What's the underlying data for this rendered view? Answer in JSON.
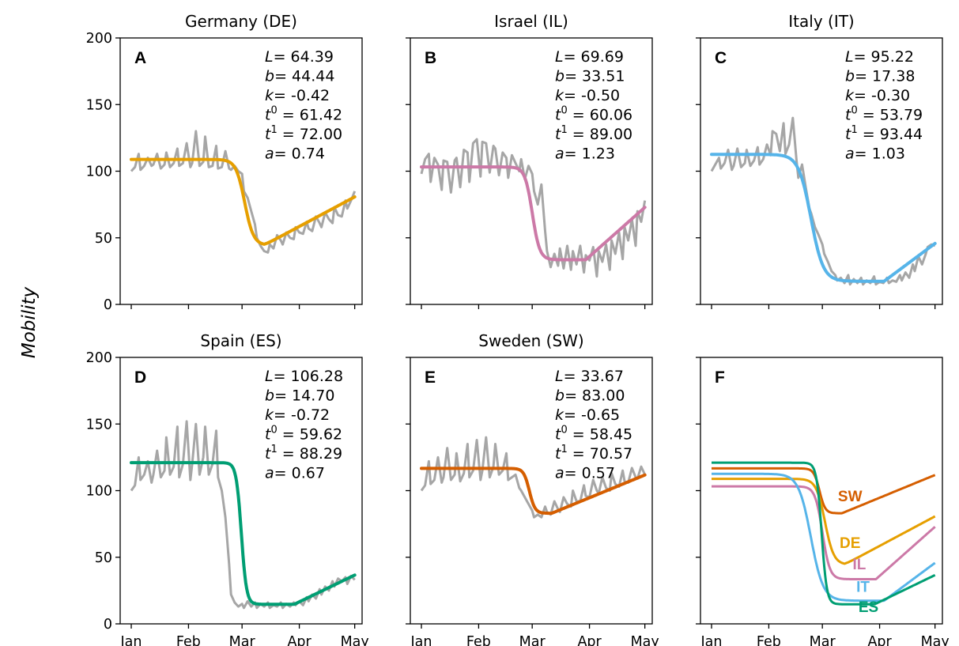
{
  "ylabel": "Mobility",
  "colors": {
    "DE": "#e69f00",
    "IL": "#cc79a7",
    "IT": "#56b4e9",
    "ES": "#009e73",
    "SW": "#d55e00",
    "raw": "#a6a6a6"
  },
  "chart_data": [
    {
      "type": "line",
      "panel": "A",
      "title": "Germany (DE)",
      "color": "#e69f00",
      "x_ticks": [
        "Jan",
        "Feb",
        "Mar",
        "Apr",
        "May"
      ],
      "x_tick_days": [
        0,
        31,
        60,
        91,
        121
      ],
      "xlim": [
        -6,
        125
      ],
      "ylim": [
        0,
        200
      ],
      "y_ticks": [
        0,
        50,
        100,
        150,
        200
      ],
      "params": {
        "L": "64.39",
        "b": "44.44",
        "k": "-0.42",
        "t0": "61.42",
        "t1": "72.00",
        "a": "0.74"
      },
      "param_labels": {
        "L": "= 64.39",
        "b": "= 44.44",
        "k": "= -0.42",
        "t0": "= 61.42",
        "t1": "= 72.00",
        "a": "= 0.74"
      },
      "observed": {
        "x": [
          0,
          2,
          4,
          5,
          7,
          9,
          11,
          12,
          14,
          16,
          18,
          19,
          21,
          23,
          25,
          26,
          28,
          30,
          32,
          33,
          35,
          37,
          39,
          40,
          42,
          44,
          46,
          47,
          49,
          51,
          53,
          54,
          56,
          58,
          60,
          61,
          63,
          65,
          67,
          68,
          70,
          72,
          74,
          75,
          77,
          79,
          81,
          82,
          84,
          86,
          88,
          89,
          91,
          93,
          95,
          96,
          98,
          100,
          102,
          103,
          105,
          107,
          109,
          110,
          112,
          114,
          116,
          117,
          119,
          121
        ],
        "y": [
          100,
          103,
          113,
          101,
          104,
          110,
          104,
          105,
          113,
          102,
          105,
          114,
          103,
          106,
          117,
          104,
          106,
          121,
          103,
          106,
          130,
          104,
          107,
          126,
          103,
          104,
          119,
          102,
          103,
          115,
          102,
          101,
          104,
          100,
          98,
          85,
          80,
          70,
          60,
          50,
          44,
          40,
          39,
          45,
          42,
          52,
          48,
          45,
          54,
          50,
          49,
          58,
          54,
          53,
          62,
          57,
          55,
          66,
          61,
          58,
          69,
          64,
          61,
          73,
          67,
          66,
          78,
          72,
          78,
          85
        ]
      }
    },
    {
      "type": "line",
      "panel": "B",
      "title": "Israel (IL)",
      "color": "#cc79a7",
      "x_ticks": [
        "Jan",
        "Feb",
        "Mar",
        "Apr",
        "May"
      ],
      "x_tick_days": [
        0,
        31,
        60,
        91,
        121
      ],
      "xlim": [
        -6,
        125
      ],
      "ylim": [
        0,
        200
      ],
      "y_ticks": [
        0,
        50,
        100,
        150,
        200
      ],
      "params": {
        "L": "69.69",
        "b": "33.51",
        "k": "-0.50",
        "t0": "60.06",
        "t1": "89.00",
        "a": "1.23"
      },
      "param_labels": {
        "L": "= 69.69",
        "b": "= 33.51",
        "k": "= -0.50",
        "t0": "= 60.06",
        "t1": "= 89.00",
        "a": "= 1.23"
      },
      "observed": {
        "x": [
          0,
          2,
          4,
          5,
          7,
          9,
          11,
          12,
          14,
          16,
          18,
          19,
          21,
          23,
          25,
          26,
          28,
          30,
          32,
          33,
          35,
          37,
          39,
          40,
          42,
          44,
          46,
          47,
          49,
          51,
          53,
          54,
          56,
          58,
          60,
          61,
          63,
          65,
          67,
          68,
          70,
          72,
          74,
          75,
          77,
          79,
          81,
          82,
          84,
          86,
          88,
          89,
          91,
          93,
          95,
          96,
          98,
          100,
          102,
          103,
          105,
          107,
          109,
          110,
          112,
          114,
          116,
          117,
          119,
          121
        ],
        "y": [
          98,
          109,
          113,
          92,
          110,
          105,
          86,
          108,
          107,
          84,
          108,
          110,
          88,
          116,
          114,
          92,
          121,
          124,
          96,
          122,
          121,
          99,
          119,
          117,
          97,
          114,
          110,
          95,
          112,
          106,
          100,
          109,
          94,
          104,
          98,
          85,
          75,
          90,
          55,
          40,
          28,
          38,
          29,
          42,
          27,
          44,
          26,
          40,
          30,
          44,
          24,
          37,
          33,
          43,
          21,
          40,
          32,
          45,
          26,
          48,
          38,
          54,
          34,
          58,
          48,
          64,
          44,
          70,
          62,
          78
        ]
      }
    },
    {
      "type": "line",
      "panel": "C",
      "title": "Italy (IT)",
      "color": "#56b4e9",
      "x_ticks": [
        "Jan",
        "Feb",
        "Mar",
        "Apr",
        "May"
      ],
      "x_tick_days": [
        0,
        31,
        60,
        91,
        121
      ],
      "xlim": [
        -6,
        125
      ],
      "ylim": [
        0,
        200
      ],
      "y_ticks": [
        0,
        50,
        100,
        150,
        200
      ],
      "params": {
        "L": "95.22",
        "b": "17.38",
        "k": "-0.30",
        "t0": "53.79",
        "t1": "93.44",
        "a": "1.03"
      },
      "param_labels": {
        "L": "= 95.22",
        "b": "= 17.38",
        "k": "= -0.30",
        "t0": "= 53.79",
        "t1": "= 93.44",
        "a": "= 1.03"
      },
      "observed": {
        "x": [
          0,
          2,
          4,
          5,
          7,
          9,
          11,
          12,
          14,
          16,
          18,
          19,
          21,
          23,
          25,
          26,
          28,
          30,
          32,
          33,
          35,
          37,
          39,
          40,
          42,
          44,
          46,
          47,
          49,
          51,
          53,
          54,
          56,
          58,
          60,
          61,
          63,
          65,
          67,
          68,
          70,
          72,
          74,
          75,
          77,
          79,
          81,
          82,
          84,
          86,
          88,
          89,
          91,
          93,
          95,
          96,
          98,
          100,
          102,
          103,
          105,
          107,
          109,
          110,
          112,
          114,
          116,
          117,
          119,
          121
        ],
        "y": [
          100,
          105,
          110,
          102,
          106,
          116,
          101,
          104,
          117,
          103,
          106,
          116,
          104,
          108,
          118,
          105,
          109,
          120,
          112,
          130,
          128,
          115,
          136,
          113,
          120,
          140,
          108,
          95,
          105,
          88,
          72,
          68,
          58,
          52,
          45,
          38,
          32,
          25,
          22,
          18,
          20,
          16,
          22,
          15,
          19,
          16,
          20,
          15,
          18,
          16,
          21,
          15,
          17,
          16,
          20,
          16,
          18,
          17,
          22,
          18,
          24,
          20,
          30,
          25,
          36,
          30,
          38,
          43,
          45,
          44
        ]
      }
    },
    {
      "type": "line",
      "panel": "D",
      "title": "Spain (ES)",
      "color": "#009e73",
      "x_ticks": [
        "Jan",
        "Feb",
        "Mar",
        "Apr",
        "May"
      ],
      "x_tick_days": [
        0,
        31,
        60,
        91,
        121
      ],
      "xlim": [
        -6,
        125
      ],
      "ylim": [
        0,
        200
      ],
      "y_ticks": [
        0,
        50,
        100,
        150,
        200
      ],
      "params": {
        "L": "106.28",
        "b": "14.70",
        "k": "-0.72",
        "t0": "59.62",
        "t1": "88.29",
        "a": "0.67"
      },
      "param_labels": {
        "L": "= 106.28",
        "b": "= 14.70",
        "k": "= -0.72",
        "t0": "= 59.62",
        "t1": "= 88.29",
        "a": "= 0.67"
      },
      "observed": {
        "x": [
          0,
          2,
          4,
          5,
          7,
          9,
          11,
          12,
          14,
          16,
          18,
          19,
          21,
          23,
          25,
          26,
          28,
          30,
          32,
          33,
          35,
          37,
          39,
          40,
          42,
          44,
          46,
          47,
          49,
          51,
          53,
          54,
          56,
          58,
          60,
          61,
          63,
          65,
          67,
          68,
          70,
          72,
          74,
          75,
          77,
          79,
          81,
          82,
          84,
          86,
          88,
          89,
          91,
          93,
          95,
          96,
          98,
          100,
          102,
          103,
          105,
          107,
          109,
          110,
          112,
          114,
          116,
          117,
          119,
          121
        ],
        "y": [
          100,
          104,
          125,
          108,
          112,
          122,
          106,
          112,
          130,
          110,
          115,
          140,
          112,
          118,
          148,
          110,
          120,
          152,
          108,
          120,
          150,
          112,
          125,
          148,
          112,
          120,
          145,
          110,
          100,
          80,
          45,
          22,
          16,
          13,
          15,
          12,
          17,
          13,
          16,
          12,
          15,
          13,
          16,
          12,
          14,
          13,
          16,
          12,
          15,
          13,
          16,
          14,
          17,
          14,
          20,
          17,
          22,
          19,
          26,
          22,
          28,
          25,
          32,
          28,
          34,
          32,
          35,
          30,
          36,
          33
        ]
      }
    },
    {
      "type": "line",
      "panel": "E",
      "title": "Sweden (SW)",
      "color": "#d55e00",
      "x_ticks": [
        "Jan",
        "Feb",
        "Mar",
        "Apr",
        "May"
      ],
      "x_tick_days": [
        0,
        31,
        60,
        91,
        121
      ],
      "xlim": [
        -6,
        125
      ],
      "ylim": [
        0,
        200
      ],
      "y_ticks": [
        0,
        50,
        100,
        150,
        200
      ],
      "params": {
        "L": "33.67",
        "b": "83.00",
        "k": "-0.65",
        "t0": "58.45",
        "t1": "70.57",
        "a": "0.57"
      },
      "param_labels": {
        "L": "= 33.67",
        "b": "= 83.00",
        "k": "= -0.65",
        "t0": "= 58.45",
        "t1": "= 70.57",
        "a": "= 0.57"
      },
      "observed": {
        "x": [
          0,
          2,
          4,
          5,
          7,
          9,
          11,
          12,
          14,
          16,
          18,
          19,
          21,
          23,
          25,
          26,
          28,
          30,
          32,
          33,
          35,
          37,
          39,
          40,
          42,
          44,
          46,
          47,
          49,
          51,
          53,
          54,
          56,
          58,
          60,
          61,
          63,
          65,
          67,
          68,
          70,
          72,
          74,
          75,
          77,
          79,
          81,
          82,
          84,
          86,
          88,
          89,
          91,
          93,
          95,
          96,
          98,
          100,
          102,
          103,
          105,
          107,
          109,
          110,
          112,
          114,
          116,
          117,
          119,
          121
        ],
        "y": [
          100,
          104,
          122,
          105,
          108,
          125,
          106,
          110,
          132,
          108,
          112,
          128,
          107,
          113,
          135,
          110,
          115,
          138,
          108,
          115,
          140,
          110,
          118,
          135,
          112,
          115,
          128,
          108,
          110,
          112,
          102,
          100,
          95,
          90,
          85,
          80,
          82,
          80,
          88,
          84,
          82,
          92,
          86,
          84,
          95,
          90,
          88,
          100,
          92,
          92,
          104,
          96,
          95,
          108,
          100,
          98,
          110,
          102,
          100,
          113,
          105,
          103,
          115,
          107,
          106,
          117,
          110,
          109,
          118,
          112
        ]
      }
    },
    {
      "type": "line",
      "panel": "F",
      "title": "",
      "color": "",
      "x_ticks": [
        "Jan",
        "Feb",
        "Mar",
        "Apr",
        "May"
      ],
      "x_tick_days": [
        0,
        31,
        60,
        91,
        121
      ],
      "xlim": [
        -6,
        125
      ],
      "ylim": [
        0,
        200
      ],
      "y_ticks": [
        0,
        50,
        100,
        150,
        200
      ],
      "series": [
        {
          "name": "SW",
          "color": "#d55e00",
          "L": 33.67,
          "b": 83.0,
          "k": -0.65,
          "t0": 58.45,
          "t1": 70.57,
          "a": 0.57
        },
        {
          "name": "DE",
          "color": "#e69f00",
          "L": 64.39,
          "b": 44.44,
          "k": -0.42,
          "t0": 61.42,
          "t1": 72.0,
          "a": 0.74
        },
        {
          "name": "IL",
          "color": "#cc79a7",
          "L": 69.69,
          "b": 33.51,
          "k": -0.5,
          "t0": 60.06,
          "t1": 89.0,
          "a": 1.23
        },
        {
          "name": "IT",
          "color": "#56b4e9",
          "L": 95.22,
          "b": 17.38,
          "k": -0.3,
          "t0": 53.79,
          "t1": 93.44,
          "a": 1.03
        },
        {
          "name": "ES",
          "color": "#009e73",
          "L": 106.28,
          "b": 14.7,
          "k": -0.72,
          "t0": 59.62,
          "t1": 88.29,
          "a": 0.67
        }
      ],
      "curve_labels": [
        {
          "text": "SW",
          "color": "#d55e00",
          "x": 75,
          "y": 92
        },
        {
          "text": "DE",
          "color": "#e69f00",
          "x": 75,
          "y": 57
        },
        {
          "text": "IL",
          "color": "#cc79a7",
          "x": 80,
          "y": 41
        },
        {
          "text": "IT",
          "color": "#56b4e9",
          "x": 82,
          "y": 24
        },
        {
          "text": "ES",
          "color": "#009e73",
          "x": 85,
          "y": 9
        }
      ]
    }
  ]
}
